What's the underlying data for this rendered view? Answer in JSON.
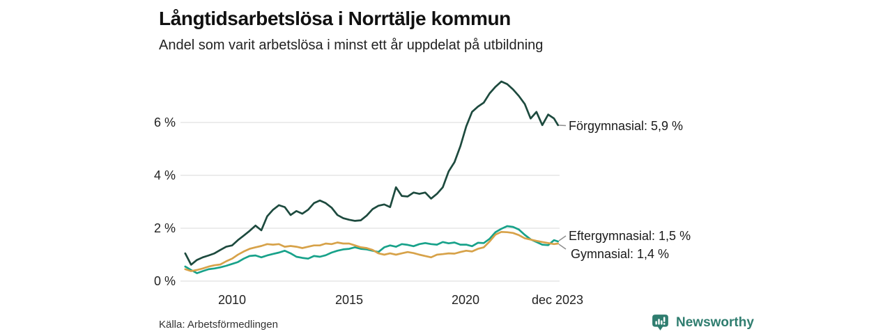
{
  "header": {
    "title": "Långtidsarbetslösa i Norrtälje kommun",
    "subtitle": "Andel som varit arbetslösa i minst ett år uppdelat på utbildning"
  },
  "series_labels": {
    "forgymnasial": "Förgymnasial: 5,9 %",
    "eftergymnasial": "Eftergymnasial: 1,5 %",
    "gymnasial": "Gymnasial: 1,4 %"
  },
  "footer": {
    "source": "Källa: Arbetsförmedlingen",
    "brand": "Newsworthy"
  },
  "colors": {
    "forgymnasial": "#1d4a3e",
    "eftergymnasial": "#18a28a",
    "gymnasial": "#d7a249",
    "brand": "#2f7d6f",
    "gridline": "#d9d9d9",
    "connector": "#8c8c8c"
  },
  "chart_data": {
    "type": "line",
    "title": "Långtidsarbetslösa i Norrtälje kommun",
    "subtitle": "Andel som varit arbetslösa i minst ett år uppdelat på utbildning",
    "xlabel": "",
    "ylabel": "",
    "grid": true,
    "legend_position": "end-of-line labels",
    "x_range": [
      2008,
      2023.92
    ],
    "ylim": [
      0,
      7.8
    ],
    "y_ticks": [
      {
        "value": 0,
        "label": "0 %"
      },
      {
        "value": 2,
        "label": "2 %"
      },
      {
        "value": 4,
        "label": "4 %"
      },
      {
        "value": 6,
        "label": "6 %"
      }
    ],
    "x_ticks": [
      {
        "value": 2010,
        "label": "2010"
      },
      {
        "value": 2015,
        "label": "2015"
      },
      {
        "value": 2020,
        "label": "2020"
      },
      {
        "value": 2023.92,
        "label": "dec 2023"
      }
    ],
    "x": [
      2008.0,
      2008.25,
      2008.5,
      2008.75,
      2009.0,
      2009.25,
      2009.5,
      2009.75,
      2010.0,
      2010.25,
      2010.5,
      2010.75,
      2011.0,
      2011.25,
      2011.5,
      2011.75,
      2012.0,
      2012.25,
      2012.5,
      2012.75,
      2013.0,
      2013.25,
      2013.5,
      2013.75,
      2014.0,
      2014.25,
      2014.5,
      2014.75,
      2015.0,
      2015.25,
      2015.5,
      2015.75,
      2016.0,
      2016.25,
      2016.5,
      2016.75,
      2017.0,
      2017.25,
      2017.5,
      2017.75,
      2018.0,
      2018.25,
      2018.5,
      2018.75,
      2019.0,
      2019.25,
      2019.5,
      2019.75,
      2020.0,
      2020.25,
      2020.5,
      2020.75,
      2021.0,
      2021.25,
      2021.5,
      2021.75,
      2022.0,
      2022.25,
      2022.5,
      2022.75,
      2023.0,
      2023.25,
      2023.5,
      2023.75,
      2023.92
    ],
    "series": [
      {
        "name": "Förgymnasial",
        "latest_value": 5.9,
        "latest_label": "Förgymnasial: 5,9 %",
        "color": "#1d4a3e",
        "values": [
          1.05,
          0.62,
          0.8,
          0.9,
          0.97,
          1.05,
          1.18,
          1.3,
          1.35,
          1.55,
          1.72,
          1.9,
          2.1,
          1.92,
          2.45,
          2.7,
          2.87,
          2.8,
          2.5,
          2.65,
          2.55,
          2.7,
          2.95,
          3.05,
          2.95,
          2.78,
          2.5,
          2.38,
          2.32,
          2.28,
          2.3,
          2.48,
          2.72,
          2.85,
          2.9,
          2.8,
          3.55,
          3.22,
          3.2,
          3.35,
          3.3,
          3.35,
          3.12,
          3.3,
          3.55,
          4.15,
          4.5,
          5.1,
          5.85,
          6.4,
          6.6,
          6.75,
          7.1,
          7.35,
          7.55,
          7.45,
          7.25,
          7.0,
          6.7,
          6.15,
          6.4,
          5.9,
          6.3,
          6.15,
          5.9
        ]
      },
      {
        "name": "Eftergymnasial",
        "latest_value": 1.5,
        "latest_label": "Eftergymnasial: 1,5 %",
        "color": "#18a28a",
        "values": [
          0.55,
          0.42,
          0.3,
          0.38,
          0.45,
          0.48,
          0.52,
          0.58,
          0.65,
          0.72,
          0.85,
          0.95,
          0.97,
          0.9,
          0.97,
          1.03,
          1.08,
          1.15,
          1.05,
          0.92,
          0.88,
          0.85,
          0.95,
          0.92,
          0.98,
          1.08,
          1.15,
          1.2,
          1.22,
          1.28,
          1.22,
          1.2,
          1.15,
          1.1,
          1.28,
          1.35,
          1.3,
          1.4,
          1.37,
          1.32,
          1.4,
          1.44,
          1.4,
          1.38,
          1.48,
          1.43,
          1.46,
          1.38,
          1.38,
          1.32,
          1.45,
          1.44,
          1.6,
          1.85,
          1.98,
          2.08,
          2.05,
          1.95,
          1.75,
          1.58,
          1.48,
          1.38,
          1.36,
          1.55,
          1.5
        ]
      },
      {
        "name": "Gymnasial",
        "latest_value": 1.4,
        "latest_label": "Gymnasial: 1,4 %",
        "color": "#d7a249",
        "values": [
          0.45,
          0.38,
          0.42,
          0.48,
          0.55,
          0.6,
          0.63,
          0.75,
          0.85,
          1.0,
          1.12,
          1.22,
          1.28,
          1.33,
          1.4,
          1.38,
          1.4,
          1.3,
          1.33,
          1.3,
          1.25,
          1.3,
          1.35,
          1.35,
          1.42,
          1.4,
          1.46,
          1.42,
          1.42,
          1.35,
          1.28,
          1.25,
          1.18,
          1.05,
          1.0,
          1.05,
          1.0,
          1.05,
          1.1,
          1.06,
          1.0,
          0.95,
          0.9,
          1.0,
          1.02,
          1.05,
          1.04,
          1.1,
          1.15,
          1.12,
          1.22,
          1.28,
          1.5,
          1.76,
          1.86,
          1.85,
          1.82,
          1.74,
          1.62,
          1.57,
          1.52,
          1.48,
          1.44,
          1.4,
          1.42
        ]
      }
    ]
  }
}
